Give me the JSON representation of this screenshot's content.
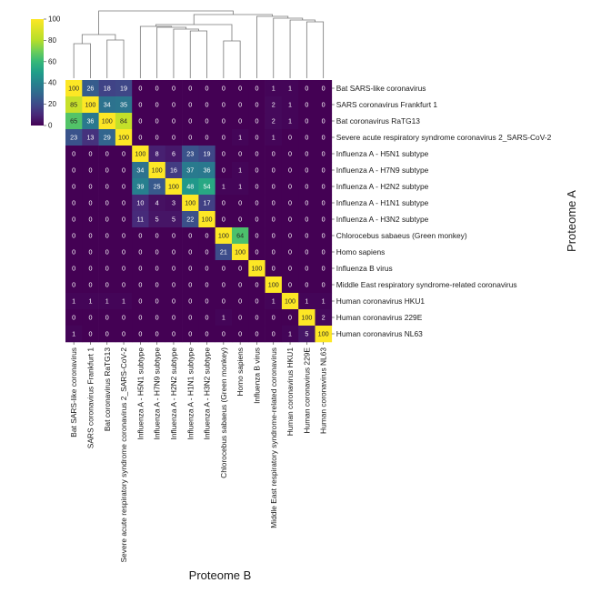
{
  "chart_data": {
    "type": "heatmap",
    "xlabel": "Proteome B",
    "ylabel": "Proteome A",
    "colormap": "viridis",
    "value_range": [
      0,
      100
    ],
    "colorbar_ticks": [
      0,
      20,
      40,
      60,
      80,
      100
    ],
    "rows": [
      "Bat SARS-like coronavirus",
      "SARS coronavirus Frankfurt 1",
      "Bat coronavirus RaTG13",
      "Severe acute respiratory syndrome coronavirus 2_SARS-CoV-2",
      "Influenza A - H5N1 subtype",
      "Influenza A - H7N9 subtype",
      "Influenza A - H2N2 subtype",
      "Influenza A - H1N1 subtype",
      "Influenza A - H3N2 subtype",
      "Chlorocebus sabaeus (Green monkey)",
      "Homo sapiens",
      "Influenza B virus",
      "Middle East respiratory syndrome-related coronavirus",
      "Human coronavirus HKU1",
      "Human coronavirus 229E",
      "Human coronavirus NL63"
    ],
    "columns": [
      "Bat SARS-like coronavirus",
      "SARS coronavirus Frankfurt 1",
      "Bat coronavirus RaTG13",
      "Severe acute respiratory syndrome coronavirus 2_SARS-CoV-2",
      "Influenza A - H5N1 subtype",
      "Influenza A - H7N9 subtype",
      "Influenza A - H2N2 subtype",
      "Influenza A - H1N1 subtype",
      "Influenza A - H3N2 subtype",
      "Chlorocebus sabaeus (Green monkey)",
      "Homo sapiens",
      "Influenza B virus",
      "Middle East respiratory syndrome-related coronavirus",
      "Human coronavirus HKU1",
      "Human coronavirus 229E",
      "Human coronavirus NL63"
    ],
    "values": [
      [
        100,
        26,
        18,
        19,
        0,
        0,
        0,
        0,
        0,
        0,
        0,
        0,
        1,
        1,
        0,
        0
      ],
      [
        85,
        100,
        34,
        35,
        0,
        0,
        0,
        0,
        0,
        0,
        0,
        0,
        2,
        1,
        0,
        0
      ],
      [
        65,
        36,
        100,
        84,
        0,
        0,
        0,
        0,
        0,
        0,
        0,
        0,
        2,
        1,
        0,
        0
      ],
      [
        23,
        13,
        29,
        100,
        0,
        0,
        0,
        0,
        0,
        0,
        1,
        0,
        1,
        0,
        0,
        0
      ],
      [
        0,
        0,
        0,
        0,
        100,
        8,
        6,
        23,
        19,
        0,
        0,
        0,
        0,
        0,
        0,
        0
      ],
      [
        0,
        0,
        0,
        0,
        34,
        100,
        16,
        37,
        36,
        0,
        1,
        0,
        0,
        0,
        0,
        0
      ],
      [
        0,
        0,
        0,
        0,
        39,
        25,
        100,
        48,
        54,
        1,
        1,
        0,
        0,
        0,
        0,
        0
      ],
      [
        0,
        0,
        0,
        0,
        10,
        4,
        3,
        100,
        17,
        0,
        0,
        0,
        0,
        0,
        0,
        0
      ],
      [
        0,
        0,
        0,
        0,
        11,
        5,
        5,
        22,
        100,
        0,
        0,
        0,
        0,
        0,
        0,
        0
      ],
      [
        0,
        0,
        0,
        0,
        0,
        0,
        0,
        0,
        0,
        100,
        64,
        0,
        0,
        0,
        0,
        0
      ],
      [
        0,
        0,
        0,
        0,
        0,
        0,
        0,
        0,
        0,
        21,
        100,
        0,
        0,
        0,
        0,
        0
      ],
      [
        0,
        0,
        0,
        0,
        0,
        0,
        0,
        0,
        0,
        0,
        0,
        100,
        0,
        0,
        0,
        0
      ],
      [
        0,
        0,
        0,
        0,
        0,
        0,
        0,
        0,
        0,
        0,
        0,
        0,
        100,
        0,
        0,
        0
      ],
      [
        1,
        1,
        1,
        1,
        0,
        0,
        0,
        0,
        0,
        0,
        0,
        0,
        1,
        100,
        1,
        1
      ],
      [
        0,
        0,
        0,
        0,
        0,
        0,
        0,
        0,
        0,
        1,
        0,
        0,
        0,
        0,
        100,
        2
      ],
      [
        1,
        0,
        0,
        0,
        0,
        0,
        0,
        0,
        0,
        0,
        0,
        0,
        0,
        1,
        5,
        100
      ]
    ],
    "column_dendrogram": true
  }
}
